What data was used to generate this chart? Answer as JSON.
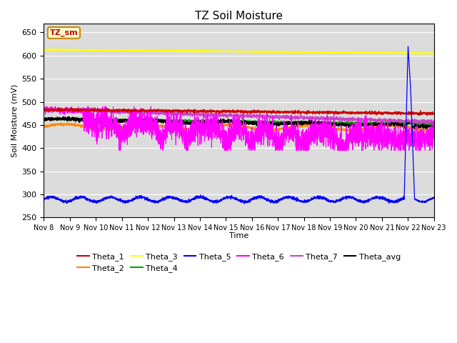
{
  "title": "TZ Soil Moisture",
  "xlabel": "Time",
  "ylabel": "Soil Moisture (mV)",
  "ylim": [
    250,
    670
  ],
  "yticks": [
    250,
    300,
    350,
    400,
    450,
    500,
    550,
    600,
    650
  ],
  "days": [
    "Nov 8",
    "Nov 9",
    "Nov 10",
    "Nov 11",
    "Nov 12",
    "Nov 13",
    "Nov 14",
    "Nov 15",
    "Nov 16",
    "Nov 17",
    "Nov 18",
    "Nov 19",
    "Nov 20",
    "Nov 21",
    "Nov 22",
    "Nov 23"
  ],
  "colors": {
    "Theta_1": "#cc0000",
    "Theta_2": "#ff8800",
    "Theta_3": "#ffff00",
    "Theta_4": "#00aa00",
    "Theta_5": "#0000ff",
    "Theta_6": "#ff00ff",
    "Theta_7": "#cc44cc",
    "Theta_avg": "#000000"
  },
  "legend_box": {
    "text": "TZ_sm",
    "facecolor": "#ffffcc",
    "edgecolor": "#cc8800",
    "textcolor": "#cc0000"
  },
  "bg_color": "#dcdcdc"
}
